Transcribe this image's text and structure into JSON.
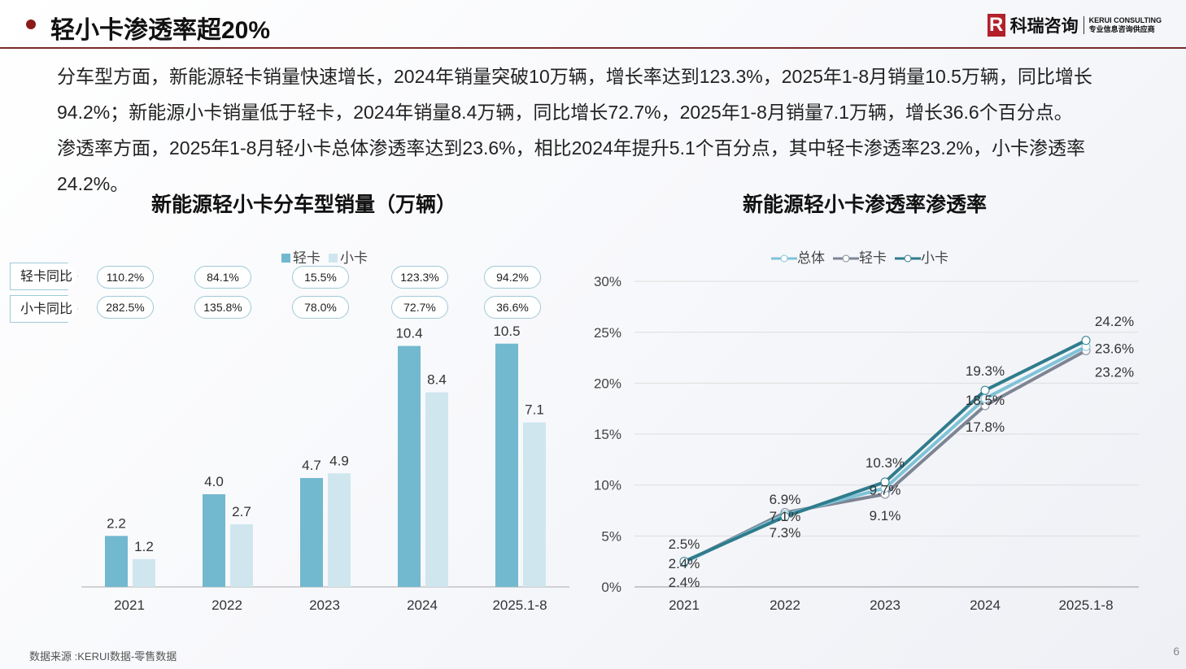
{
  "header": {
    "title": "轻小卡渗透率超20%",
    "logo_mark": "R",
    "logo_cn": "科瑞咨询",
    "logo_en1": "KERUI CONSULTING",
    "logo_en2": "专业信息咨询供应商"
  },
  "body": {
    "p1": "分车型方面，新能源轻卡销量快速增长，2024年销量突破10万辆，增长率达到123.3%，2025年1-8月销量10.5万辆，同比增长94.2%；新能源小卡销量低于轻卡，2024年销量8.4万辆，同比增长72.7%，2025年1-8月销量7.1万辆，增长36.6个百分点。",
    "p2": "渗透率方面，2025年1-8月轻小卡总体渗透率达到23.6%，相比2024年提升5.1个百分点，其中轻卡渗透率23.2%，小卡渗透率24.2%。"
  },
  "footer": {
    "source": "数据来源 :KERUI数据-零售数据",
    "page": "6"
  },
  "colors": {
    "light_truck": "#72b8cf",
    "mini_truck": "#cfe6ef",
    "overall": "#7ec3d8",
    "light_line": "#7d8594",
    "mini_line": "#2f7c8c"
  },
  "chart_data": [
    {
      "type": "bar",
      "title": "新能源轻小卡分车型销量（万辆）",
      "categories": [
        "2021",
        "2022",
        "2023",
        "2024",
        "2025.1-8"
      ],
      "series": [
        {
          "name": "轻卡",
          "values": [
            2.2,
            4.0,
            4.7,
            10.4,
            10.5
          ]
        },
        {
          "name": "小卡",
          "values": [
            1.2,
            2.7,
            4.9,
            8.4,
            7.1
          ]
        }
      ],
      "ylim": [
        0,
        10.5
      ],
      "legend": "top",
      "growth": {
        "light_label": "轻卡同比",
        "mini_label": "小卡同比",
        "light": [
          "110.2%",
          "84.1%",
          "15.5%",
          "123.3%",
          "94.2%"
        ],
        "mini": [
          "282.5%",
          "135.8%",
          "78.0%",
          "72.7%",
          "36.6%"
        ]
      }
    },
    {
      "type": "line",
      "title": "新能源轻小卡渗透率渗透率",
      "categories": [
        "2021",
        "2022",
        "2023",
        "2024",
        "2025.1-8"
      ],
      "series": [
        {
          "name": "总体",
          "values": [
            2.4,
            7.1,
            9.7,
            18.5,
            23.6
          ]
        },
        {
          "name": "轻卡",
          "values": [
            2.4,
            7.3,
            9.1,
            17.8,
            23.2
          ]
        },
        {
          "name": "小卡",
          "values": [
            2.5,
            6.9,
            10.3,
            19.3,
            24.2
          ]
        }
      ],
      "ylim": [
        0,
        30
      ],
      "yticks": [
        "0%",
        "5%",
        "10%",
        "15%",
        "20%",
        "25%",
        "30%"
      ],
      "legend": "top"
    }
  ]
}
